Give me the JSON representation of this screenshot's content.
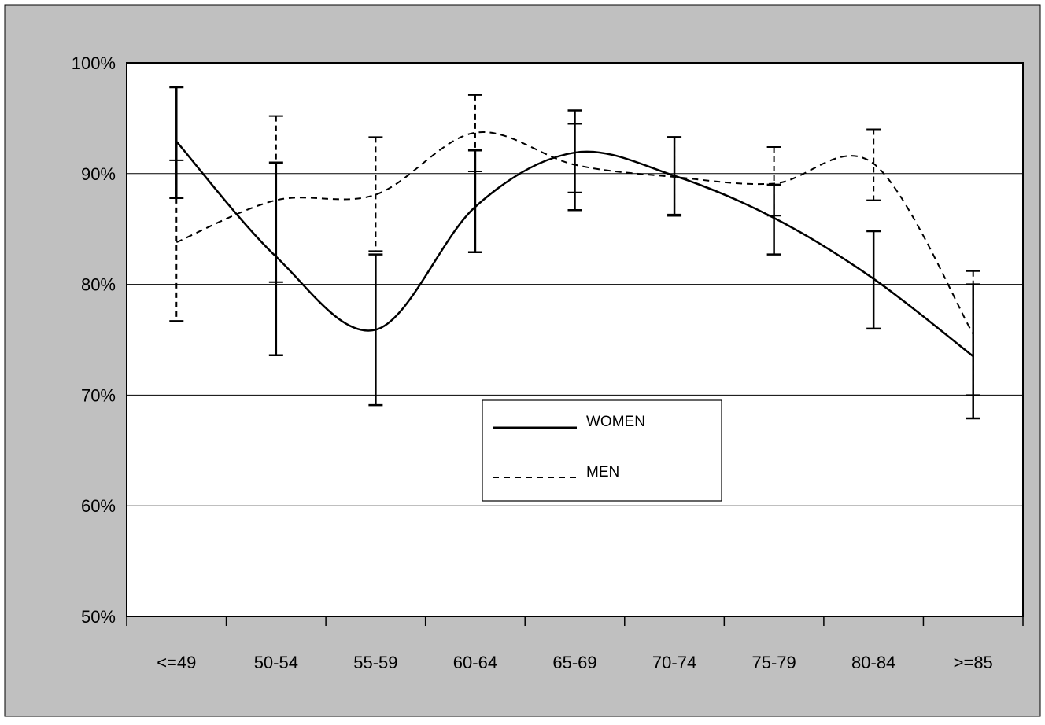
{
  "chart_data": {
    "type": "line",
    "categories": [
      "<=49",
      "50-54",
      "55-59",
      "60-64",
      "65-69",
      "70-74",
      "75-79",
      "80-84",
      ">=85"
    ],
    "ylim": [
      0.5,
      1.0
    ],
    "yticks": [
      0.5,
      0.6,
      0.7,
      0.8,
      0.9,
      1.0
    ],
    "ytick_labels": [
      "50%",
      "60%",
      "70%",
      "80%",
      "90%",
      "100%"
    ],
    "grid": true,
    "legend_position": "center",
    "colors": {
      "background": "#c0c0c0",
      "plot": "#ffffff",
      "line": "#000000"
    },
    "series": [
      {
        "name": "WOMEN",
        "style": "solid",
        "values": [
          0.929,
          0.825,
          0.759,
          0.87,
          0.919,
          0.898,
          0.86,
          0.805,
          0.735
        ],
        "error_low": [
          0.878,
          0.736,
          0.691,
          0.829,
          0.867,
          0.862,
          0.827,
          0.76,
          0.679
        ],
        "error_high": [
          0.978,
          0.91,
          0.827,
          0.921,
          0.957,
          0.933,
          0.89,
          0.848,
          0.8
        ]
      },
      {
        "name": "MEN",
        "style": "dashed",
        "values": [
          0.838,
          0.876,
          0.881,
          0.937,
          0.908,
          0.897,
          0.891,
          0.909,
          0.755
        ],
        "error_low": [
          0.767,
          0.802,
          0.83,
          0.902,
          0.883,
          0.863,
          0.862,
          0.876,
          0.7
        ],
        "error_high": [
          0.912,
          0.952,
          0.933,
          0.971,
          0.945,
          0.933,
          0.924,
          0.94,
          0.812
        ]
      }
    ]
  }
}
